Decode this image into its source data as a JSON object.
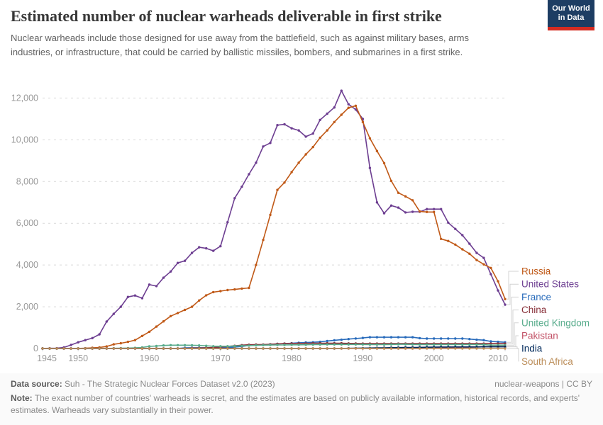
{
  "header": {
    "title": "Estimated number of nuclear warheads deliverable in first strike",
    "subtitle": "Nuclear warheads include those designed for use away from the battlefield, such as against military bases, arms industries, or infrastructure, that could be carried by ballistic missiles, bombers, and submarines in a first strike.",
    "logo": {
      "line1": "Our World",
      "line2": "in Data",
      "bg_color": "#1d3d63",
      "stripe_color": "#d42b21"
    }
  },
  "footer": {
    "source_label": "Data source:",
    "source_text": " Suh - The Strategic Nuclear Forces Dataset v2.0 (2023)",
    "right_text": "nuclear-weapons | CC BY",
    "note_label": "Note:",
    "note_text": " The exact number of countries' warheads is secret, and the estimates are based on publicly available information, historical records, and experts' estimates. Warheads vary substantially in their power."
  },
  "chart_data": {
    "type": "line",
    "title": "Estimated number of nuclear warheads deliverable in first strike",
    "xlabel": "",
    "ylabel": "",
    "xlim": [
      1945,
      2010
    ],
    "ylim": [
      0,
      12000
    ],
    "x_ticks": [
      1945,
      1950,
      1960,
      1970,
      1980,
      1990,
      2000,
      2010
    ],
    "y_ticks": [
      0,
      2000,
      4000,
      6000,
      8000,
      10000,
      12000
    ],
    "grid": "horizontal-dashed",
    "legend_position": "right",
    "marker": "point-per-year",
    "x": [
      1945,
      1946,
      1947,
      1948,
      1949,
      1950,
      1951,
      1952,
      1953,
      1954,
      1955,
      1956,
      1957,
      1958,
      1959,
      1960,
      1961,
      1962,
      1963,
      1964,
      1965,
      1966,
      1967,
      1968,
      1969,
      1970,
      1971,
      1972,
      1973,
      1974,
      1975,
      1976,
      1977,
      1978,
      1979,
      1980,
      1981,
      1982,
      1983,
      1984,
      1985,
      1986,
      1987,
      1988,
      1989,
      1990,
      1991,
      1992,
      1993,
      1994,
      1995,
      1996,
      1997,
      1998,
      1999,
      2000,
      2001,
      2002,
      2003,
      2004,
      2005,
      2006,
      2007,
      2008,
      2009,
      2010
    ],
    "series": [
      {
        "name": "Russia",
        "color": "#C05917",
        "values": [
          0,
          0,
          0,
          0,
          1,
          5,
          15,
          35,
          50,
          100,
          200,
          250,
          320,
          400,
          600,
          800,
          1050,
          1300,
          1550,
          1700,
          1850,
          2000,
          2300,
          2550,
          2700,
          2750,
          2800,
          2830,
          2870,
          2900,
          4000,
          5200,
          6400,
          7600,
          7950,
          8450,
          8900,
          9300,
          9650,
          10100,
          10450,
          10850,
          11200,
          11530,
          11630,
          10850,
          10070,
          9460,
          8880,
          8030,
          7460,
          7290,
          7100,
          6570,
          6540,
          6540,
          5250,
          5150,
          4980,
          4750,
          4540,
          4240,
          4030,
          3860,
          3220,
          2370
        ]
      },
      {
        "name": "United States",
        "color": "#6D3E91",
        "values": [
          2,
          9,
          13,
          50,
          170,
          300,
          400,
          500,
          680,
          1290,
          1660,
          2000,
          2470,
          2540,
          2410,
          3060,
          2990,
          3390,
          3690,
          4100,
          4200,
          4580,
          4850,
          4800,
          4680,
          4900,
          6050,
          7200,
          7750,
          8350,
          8900,
          9680,
          9850,
          10700,
          10740,
          10550,
          10450,
          10150,
          10300,
          10950,
          11250,
          11550,
          12350,
          11700,
          11450,
          11000,
          8650,
          7000,
          6480,
          6850,
          6750,
          6520,
          6550,
          6550,
          6680,
          6680,
          6680,
          6030,
          5730,
          5430,
          5020,
          4580,
          4340,
          3560,
          2780,
          2100
        ]
      },
      {
        "name": "France",
        "color": "#286BBB",
        "values": [
          0,
          0,
          0,
          0,
          0,
          0,
          0,
          0,
          0,
          0,
          0,
          0,
          0,
          0,
          0,
          0,
          0,
          0,
          0,
          4,
          32,
          36,
          36,
          36,
          36,
          36,
          45,
          70,
          100,
          145,
          165,
          180,
          200,
          220,
          235,
          250,
          275,
          290,
          300,
          320,
          360,
          395,
          420,
          450,
          480,
          505,
          540,
          540,
          540,
          540,
          540,
          540,
          540,
          495,
          475,
          475,
          475,
          475,
          475,
          475,
          450,
          420,
          400,
          340,
          320,
          300
        ]
      },
      {
        "name": "China",
        "color": "#883039",
        "values": [
          0,
          0,
          0,
          0,
          0,
          0,
          0,
          0,
          0,
          0,
          0,
          0,
          0,
          0,
          0,
          0,
          0,
          0,
          0,
          1,
          5,
          20,
          25,
          35,
          50,
          75,
          100,
          130,
          160,
          180,
          185,
          190,
          200,
          220,
          235,
          240,
          245,
          245,
          250,
          250,
          250,
          250,
          250,
          245,
          240,
          235,
          235,
          235,
          235,
          235,
          235,
          235,
          235,
          235,
          235,
          235,
          235,
          235,
          235,
          235,
          235,
          235,
          235,
          235,
          235,
          235
        ]
      },
      {
        "name": "United Kingdom",
        "color": "#58AC8C",
        "values": [
          0,
          0,
          0,
          0,
          0,
          0,
          0,
          0,
          1,
          5,
          10,
          15,
          20,
          30,
          50,
          105,
          120,
          145,
          160,
          160,
          160,
          155,
          145,
          130,
          110,
          110,
          110,
          115,
          130,
          140,
          150,
          160,
          165,
          170,
          170,
          175,
          175,
          180,
          185,
          190,
          195,
          195,
          195,
          195,
          195,
          195,
          185,
          185,
          185,
          195,
          200,
          200,
          195,
          185,
          185,
          185,
          185,
          185,
          185,
          185,
          185,
          185,
          185,
          160,
          160,
          160
        ]
      },
      {
        "name": "Pakistan",
        "color": "#C15065",
        "values": [
          0,
          0,
          0,
          0,
          0,
          0,
          0,
          0,
          0,
          0,
          0,
          0,
          0,
          0,
          0,
          0,
          0,
          0,
          0,
          0,
          0,
          0,
          0,
          0,
          0,
          0,
          0,
          0,
          0,
          0,
          0,
          0,
          0,
          0,
          0,
          0,
          0,
          0,
          0,
          0,
          0,
          0,
          0,
          0,
          0,
          0,
          0,
          0,
          0,
          0,
          0,
          0,
          0,
          5,
          10,
          20,
          25,
          30,
          40,
          50,
          60,
          70,
          80,
          90,
          90,
          90
        ]
      },
      {
        "name": "India",
        "color": "#00295B",
        "values": [
          0,
          0,
          0,
          0,
          0,
          0,
          0,
          0,
          0,
          0,
          0,
          0,
          0,
          0,
          0,
          0,
          0,
          0,
          0,
          0,
          0,
          0,
          0,
          0,
          0,
          0,
          0,
          0,
          0,
          0,
          0,
          0,
          0,
          0,
          0,
          0,
          0,
          0,
          0,
          0,
          0,
          0,
          5,
          10,
          15,
          20,
          25,
          30,
          35,
          40,
          45,
          50,
          50,
          55,
          60,
          65,
          70,
          70,
          75,
          75,
          75,
          75,
          80,
          80,
          80,
          80
        ]
      },
      {
        "name": "South Africa",
        "color": "#BC8E5A",
        "values": [
          0,
          0,
          0,
          0,
          0,
          0,
          0,
          0,
          0,
          0,
          0,
          0,
          0,
          0,
          0,
          0,
          0,
          0,
          0,
          0,
          0,
          0,
          0,
          0,
          0,
          0,
          0,
          0,
          0,
          0,
          0,
          0,
          0,
          0,
          0,
          0,
          0,
          1,
          2,
          3,
          4,
          4,
          5,
          5,
          6,
          3,
          0,
          0,
          0,
          0,
          0,
          0,
          0,
          0,
          0,
          0,
          0,
          0,
          0,
          0,
          0,
          0,
          0,
          0,
          0,
          0
        ]
      }
    ]
  }
}
